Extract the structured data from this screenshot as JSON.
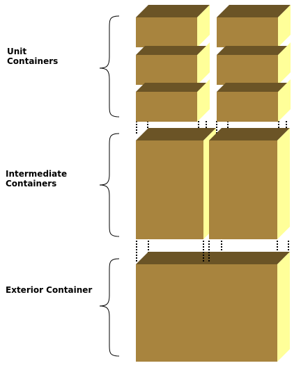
{
  "labels": {
    "unit_line1": "Unit",
    "unit_line2": "Containers",
    "intermediate_line1": "Intermediate",
    "intermediate_line2": "Containers",
    "exterior": "Exterior Container"
  },
  "colors": {
    "front": "#a8843e",
    "top": "#6b5426",
    "side": "#ffff99",
    "line": "#000000",
    "brace": "#000000"
  }
}
